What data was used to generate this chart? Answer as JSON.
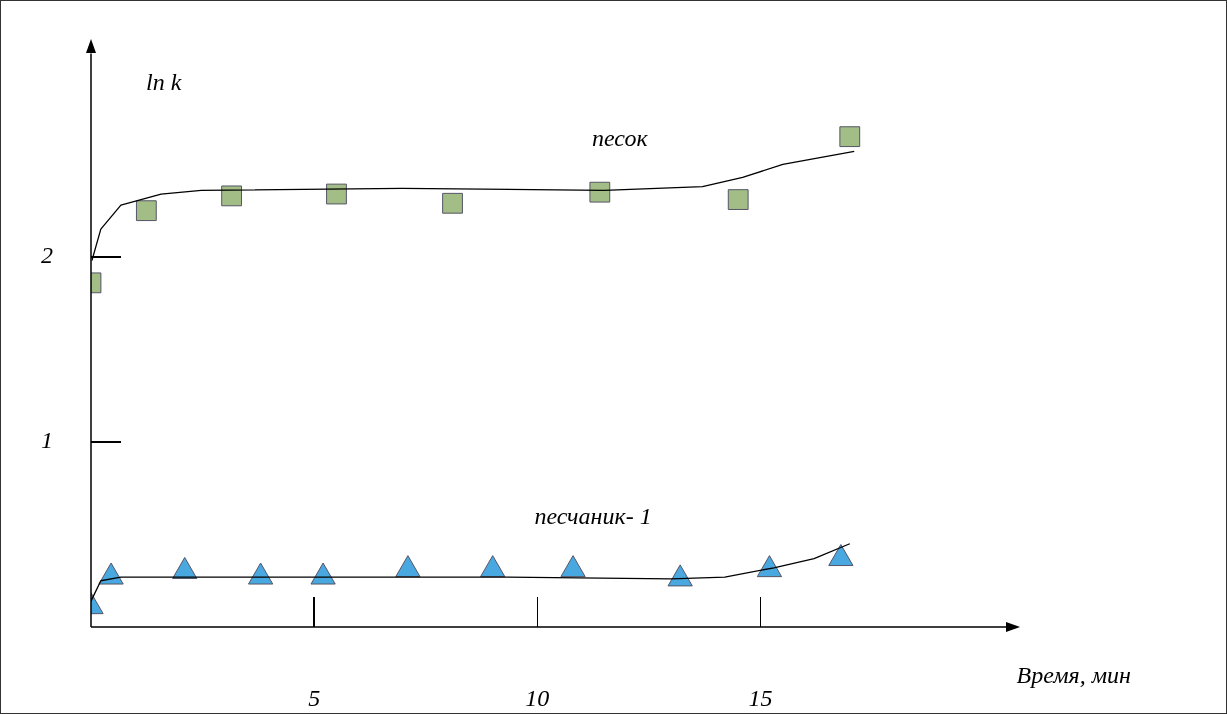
{
  "chart_data": {
    "type": "scatter",
    "xlabel": "Время, мин",
    "ylabel": "ln k",
    "xlim": [
      0,
      20.5
    ],
    "ylim": [
      0,
      3.1
    ],
    "xticks": [
      5,
      10,
      15
    ],
    "yticks": [
      1,
      2
    ],
    "grid": false,
    "legend": false,
    "series": [
      {
        "type": "scatter",
        "name": "песок",
        "marker": "square",
        "color": "#a3bd86",
        "x": [
          0,
          1.24,
          3.15,
          5.5,
          8.1,
          11.4,
          14.5,
          17.0
        ],
        "values": [
          1.86,
          2.25,
          2.33,
          2.34,
          2.29,
          2.35,
          2.31,
          2.65
        ]
      },
      {
        "type": "scatter",
        "name": "песчаник- 1",
        "marker": "triangle",
        "color": "#4aa8e0",
        "x": [
          0,
          0.45,
          2.1,
          3.8,
          5.2,
          7.1,
          9.0,
          10.8,
          13.2,
          15.2,
          16.8
        ],
        "values": [
          0.11,
          0.27,
          0.3,
          0.27,
          0.27,
          0.31,
          0.31,
          0.31,
          0.26,
          0.31,
          0.37
        ]
      },
      {
        "type": "line",
        "marker": "none",
        "color": "#000000",
        "x": [
          0.02,
          0.22,
          0.67,
          1.57,
          2.47,
          6.97,
          11.5,
          13.7,
          14.6,
          15.5,
          17.1
        ],
        "values": [
          1.98,
          2.15,
          2.28,
          2.34,
          2.36,
          2.37,
          2.36,
          2.38,
          2.43,
          2.5,
          2.57
        ]
      },
      {
        "type": "line",
        "marker": "none",
        "color": "#000000",
        "x": [
          0,
          0.22,
          0.67,
          4.7,
          9.2,
          13.0,
          14.2,
          15.3,
          16.2,
          17.0
        ],
        "values": [
          0.14,
          0.25,
          0.27,
          0.27,
          0.27,
          0.26,
          0.27,
          0.32,
          0.37,
          0.45
        ]
      }
    ]
  }
}
